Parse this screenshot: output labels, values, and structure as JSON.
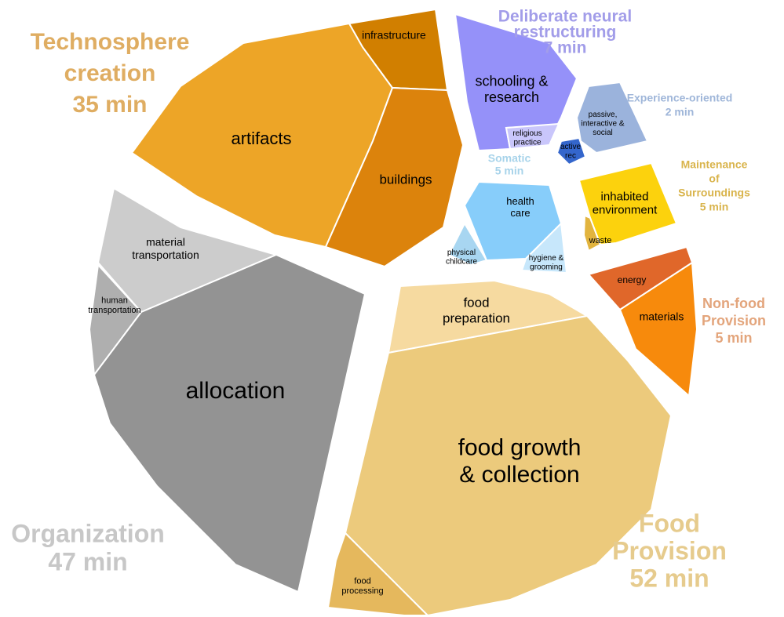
{
  "groups": [
    {
      "title": [
        "Technosphere",
        "creation"
      ],
      "time": "35 min",
      "color": "#dfad62",
      "cells": [
        {
          "label": [
            "artifacts"
          ],
          "color": "#eda527"
        },
        {
          "label": [
            "infrastructure"
          ],
          "color": "#d17f00"
        },
        {
          "label": [
            "buildings"
          ],
          "color": "#dc830c"
        }
      ]
    },
    {
      "title": [
        "Deliberate neural",
        "restructuring"
      ],
      "time": "7 min",
      "color": "#a29de9",
      "cells": [
        {
          "label": [
            "schooling &",
            "research"
          ],
          "color": "#9591f9"
        },
        {
          "label": [
            "religious",
            "practice"
          ],
          "color": "#c9c6fb"
        }
      ]
    },
    {
      "title": [
        "Experience-oriented"
      ],
      "time": "2 min",
      "color": "#9fb6d9",
      "cells": [
        {
          "label": [
            "passive,",
            "interactive &",
            "social"
          ],
          "color": "#9bb3dc"
        },
        {
          "label": [
            "active",
            "rec"
          ],
          "color": "#3466cc"
        }
      ]
    },
    {
      "title": [
        "Maintenance",
        "of",
        "Surroundings"
      ],
      "time": "5 min",
      "color": "#d9b44c",
      "cells": [
        {
          "label": [
            "inhabited",
            "environment"
          ],
          "color": "#fcd20d"
        },
        {
          "label": [
            "waste"
          ],
          "color": "#e2b43e"
        }
      ]
    },
    {
      "title": [
        "Non-food",
        "Provision"
      ],
      "time": "5 min",
      "color": "#e3a57c",
      "cells": [
        {
          "label": [
            "energy"
          ],
          "color": "#e0672a"
        },
        {
          "label": [
            "materials"
          ],
          "color": "#f78a0c"
        }
      ]
    },
    {
      "title": [
        "Somatic"
      ],
      "time": "5 min",
      "color": "#a7d3ea",
      "cells": [
        {
          "label": [
            "health",
            "care"
          ],
          "color": "#87cdfa"
        },
        {
          "label": [
            "physical",
            "childcare"
          ],
          "color": "#a8d6f1"
        },
        {
          "label": [
            "hygiene &",
            "grooming"
          ],
          "color": "#c7e7fb"
        }
      ]
    },
    {
      "title": [
        "Food",
        "Provision"
      ],
      "time": "52 min",
      "color": "#e6cb8d",
      "cells": [
        {
          "label": [
            "food",
            "preparation"
          ],
          "color": "#f6daa0"
        },
        {
          "label": [
            "food growth",
            "& collection"
          ],
          "color": "#ecca7c"
        },
        {
          "label": [
            "food",
            "processing"
          ],
          "color": "#e5b85d"
        }
      ]
    },
    {
      "title": [
        "Organization"
      ],
      "time": "47 min",
      "color": "#c7c7c7",
      "cells": [
        {
          "label": [
            "material",
            "transportation"
          ],
          "color": "#cccccc"
        },
        {
          "label": [
            "human",
            "transportation"
          ],
          "color": "#afafaf"
        },
        {
          "label": [
            "allocation"
          ],
          "color": "#939393"
        }
      ]
    }
  ]
}
